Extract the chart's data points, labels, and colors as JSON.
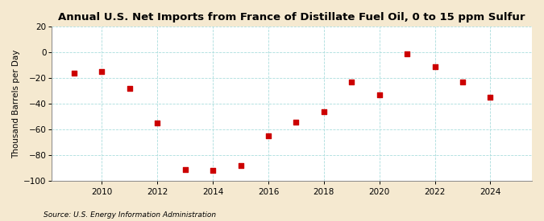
{
  "title": "Annual U.S. Net Imports from France of Distillate Fuel Oil, 0 to 15 ppm Sulfur",
  "ylabel": "Thousand Barrels per Day",
  "source": "Source: U.S. Energy Information Administration",
  "years": [
    2009,
    2010,
    2011,
    2012,
    2013,
    2014,
    2015,
    2016,
    2017,
    2018,
    2019,
    2020,
    2021,
    2022,
    2023,
    2024
  ],
  "values": [
    -16,
    -15,
    -28,
    -55,
    -91,
    -92,
    -88,
    -65,
    -54,
    -46,
    -23,
    -33,
    -1,
    -11,
    -23,
    -35
  ],
  "marker_color": "#cc0000",
  "figure_background": "#f5e9d0",
  "axes_background": "#ffffff",
  "grid_color": "#aadddd",
  "spine_color": "#888888",
  "ylim": [
    -100,
    20
  ],
  "yticks": [
    -100,
    -80,
    -60,
    -40,
    -20,
    0,
    20
  ],
  "xticks": [
    2010,
    2012,
    2014,
    2016,
    2018,
    2020,
    2022,
    2024
  ],
  "xlim": [
    2008.2,
    2025.5
  ],
  "title_fontsize": 9.5,
  "label_fontsize": 7.5,
  "tick_fontsize": 7.5,
  "source_fontsize": 6.5
}
